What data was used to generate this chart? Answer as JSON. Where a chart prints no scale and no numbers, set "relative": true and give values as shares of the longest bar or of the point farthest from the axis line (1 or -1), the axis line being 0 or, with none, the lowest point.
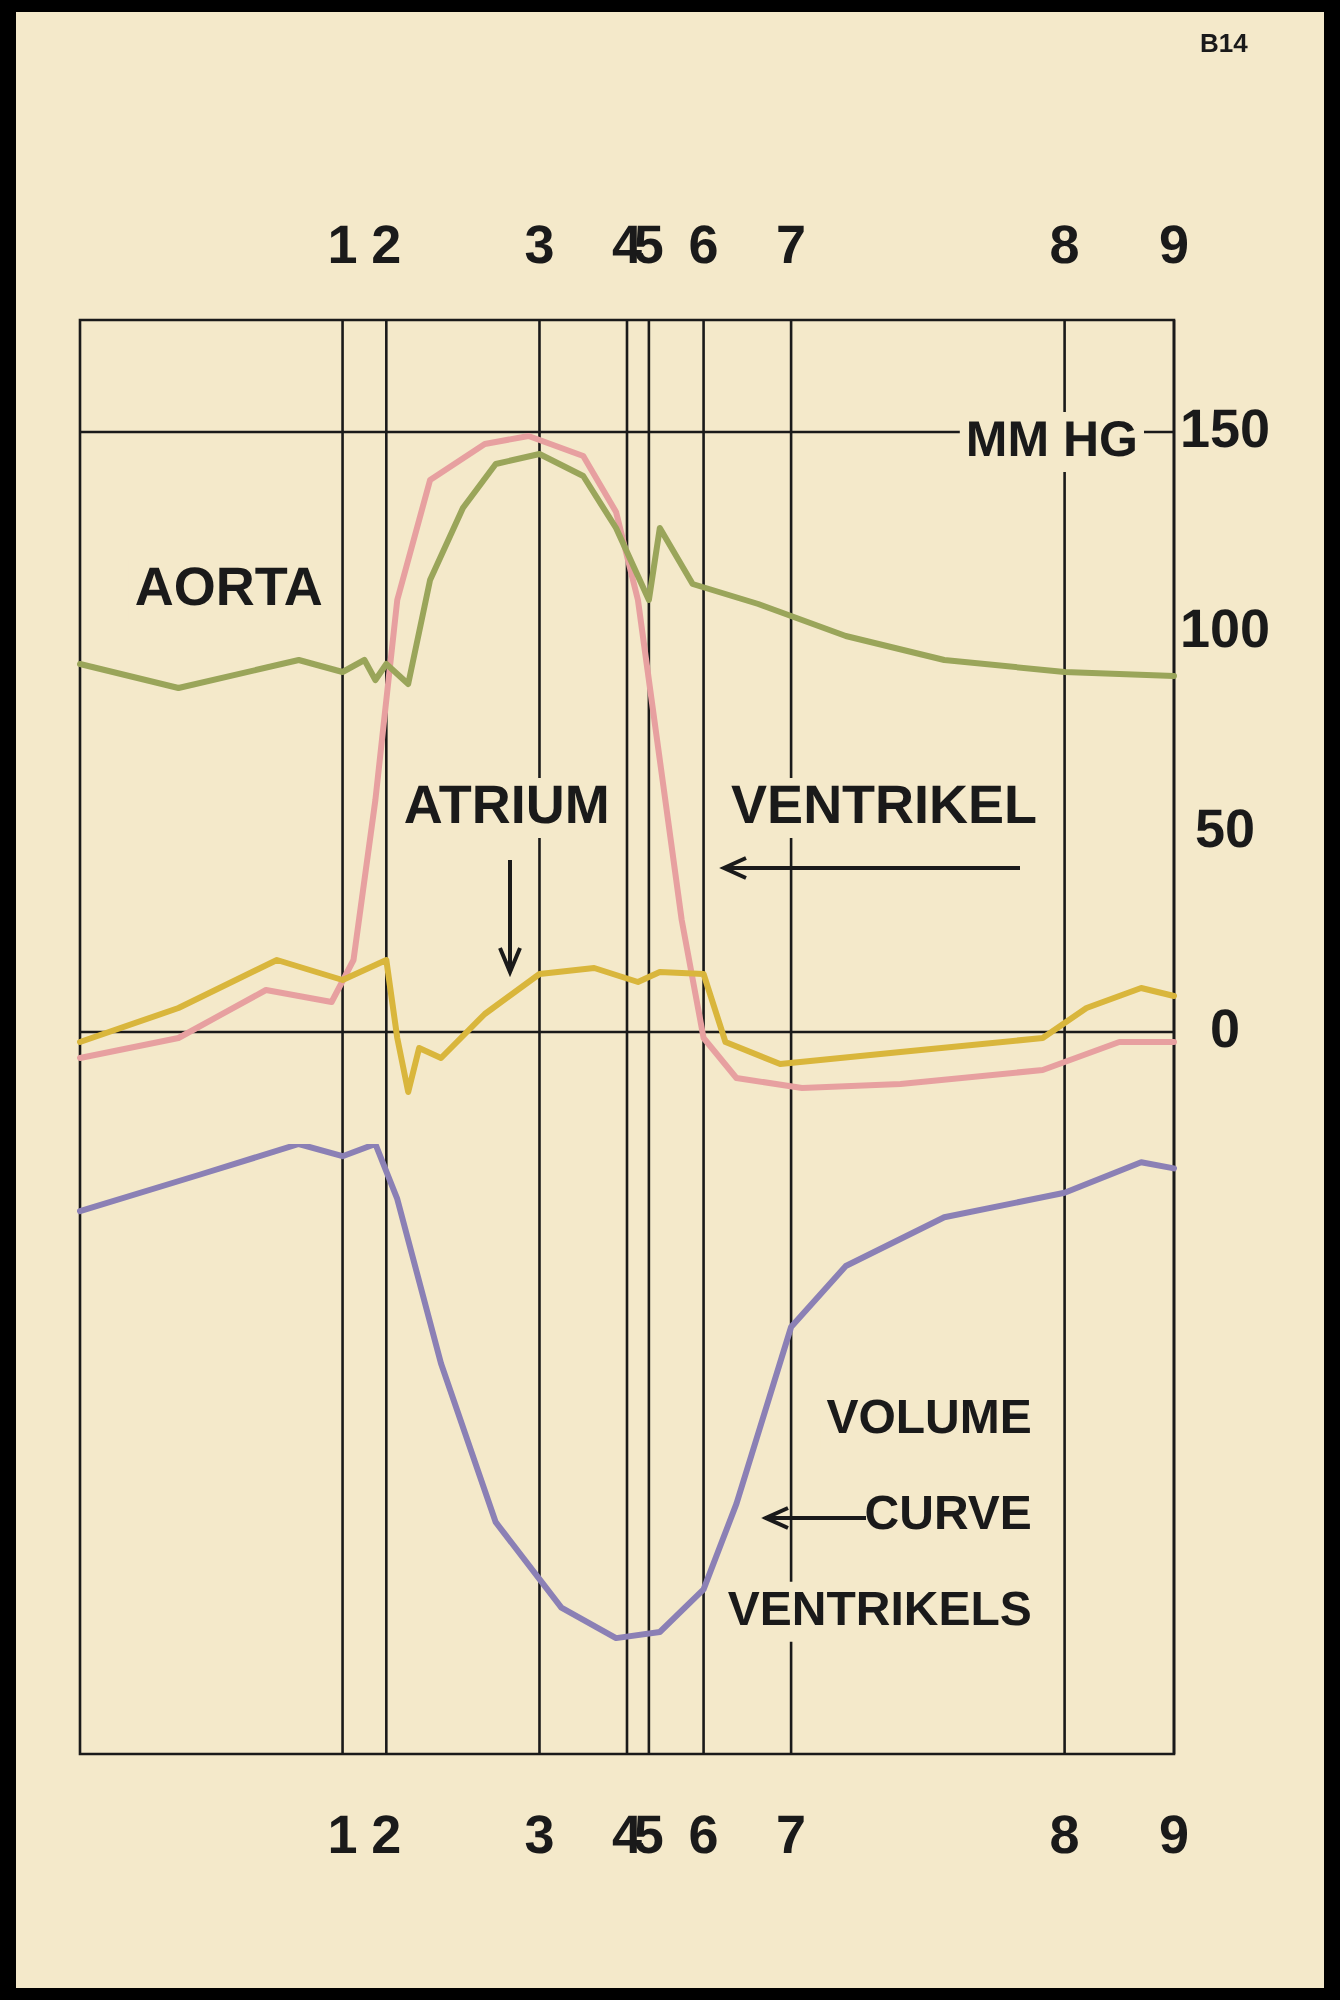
{
  "chart_data": [
    {
      "type": "line",
      "ylabel": "MM HG",
      "annotations": [
        "B14"
      ],
      "categories": [
        null,
        null,
        null,
        null,
        null,
        null,
        null,
        null,
        null,
        null,
        null,
        null,
        null,
        null,
        null,
        null,
        null,
        null,
        null,
        null,
        null,
        null,
        null,
        null,
        "1",
        null,
        null,
        null,
        "2",
        null,
        null,
        null,
        null,
        null,
        null,
        null,
        null,
        null,
        null,
        null,
        null,
        null,
        "3",
        null,
        null,
        null,
        null,
        null,
        null,
        null,
        "4",
        null,
        "5",
        null,
        null,
        null,
        null,
        "6",
        null,
        null,
        null,
        null,
        null,
        null,
        null,
        "7",
        null,
        null,
        null,
        null,
        null,
        null,
        null,
        null,
        null,
        null,
        null,
        null,
        null,
        null,
        null,
        null,
        null,
        null,
        null,
        null,
        null,
        null,
        null,
        null,
        "8",
        null,
        null,
        null,
        null,
        null,
        null,
        null,
        null,
        null,
        "9"
      ],
      "ylim": [
        -22,
        178
      ],
      "yticks": [
        0,
        50,
        100,
        150
      ],
      "grid": "x",
      "marker": "none",
      "line_style": "solid",
      "ref_lines": [
        {
          "axis": "y",
          "value": 150,
          "color": "#1a1a1a"
        },
        {
          "axis": "y",
          "value": 0,
          "color": "#1a1a1a"
        }
      ],
      "series": [
        {
          "name": "AORTA",
          "color": "#9aa55a",
          "values": [
            92,
            null,
            null,
            null,
            null,
            null,
            null,
            null,
            null,
            86,
            null,
            null,
            null,
            null,
            null,
            null,
            null,
            null,
            null,
            null,
            93,
            null,
            null,
            null,
            90,
            null,
            93,
            88,
            92,
            null,
            87,
            null,
            113,
            null,
            null,
            131,
            null,
            null,
            142,
            null,
            null,
            null,
            144.5,
            null,
            null,
            null,
            139,
            null,
            null,
            126,
            null,
            null,
            108,
            126,
            null,
            null,
            112,
            null,
            null,
            null,
            null,
            null,
            107,
            null,
            null,
            null,
            null,
            null,
            null,
            null,
            99,
            null,
            null,
            null,
            null,
            null,
            null,
            null,
            null,
            93,
            null,
            null,
            null,
            null,
            null,
            null,
            null,
            null,
            null,
            null,
            90,
            null,
            null,
            null,
            null,
            null,
            null,
            null,
            null,
            null,
            89
          ]
        },
        {
          "name": "ATRIUM",
          "color": "#d9b63c",
          "values": [
            -2.5,
            null,
            null,
            null,
            null,
            null,
            null,
            null,
            null,
            6,
            null,
            null,
            null,
            null,
            null,
            null,
            null,
            null,
            18,
            null,
            null,
            null,
            null,
            null,
            13,
            null,
            null,
            null,
            18,
            -1.5,
            -15,
            -4,
            null,
            -6.5,
            null,
            null,
            null,
            4.5,
            null,
            null,
            null,
            null,
            14.5,
            null,
            null,
            null,
            null,
            16,
            null,
            null,
            null,
            12.5,
            null,
            15,
            null,
            null,
            null,
            14.5,
            null,
            -2.5,
            null,
            null,
            null,
            null,
            -8,
            null,
            null,
            null,
            null,
            null,
            null,
            null,
            null,
            null,
            null,
            -5,
            null,
            null,
            null,
            null,
            null,
            null,
            null,
            null,
            null,
            null,
            null,
            null,
            -1.5,
            null,
            null,
            null,
            6,
            null,
            null,
            null,
            null,
            11,
            null,
            null,
            9
          ]
        },
        {
          "name": "VENTRIKEL",
          "color": "#e7a0a0",
          "values": [
            -6.5,
            null,
            null,
            null,
            null,
            null,
            null,
            null,
            null,
            -1.5,
            null,
            null,
            null,
            null,
            null,
            null,
            null,
            10.5,
            null,
            null,
            null,
            null,
            null,
            7.5,
            null,
            18,
            null,
            58,
            null,
            108,
            null,
            null,
            138,
            null,
            null,
            null,
            null,
            147,
            null,
            null,
            null,
            149,
            null,
            null,
            null,
            null,
            144,
            null,
            null,
            130,
            null,
            108,
            null,
            68,
            null,
            28,
            null,
            -1.5,
            null,
            null,
            -11.5,
            null,
            null,
            null,
            null,
            null,
            -14,
            null,
            null,
            null,
            null,
            null,
            null,
            null,
            null,
            -13,
            null,
            null,
            null,
            null,
            null,
            null,
            null,
            null,
            null,
            null,
            null,
            null,
            -9.5,
            null,
            null,
            null,
            null,
            null,
            null,
            -2.5,
            null,
            null,
            null,
            null,
            -2.5
          ]
        }
      ]
    },
    {
      "type": "line",
      "relative": true,
      "tick_labels": "x",
      "categories": [
        null,
        null,
        null,
        null,
        null,
        null,
        null,
        null,
        null,
        null,
        null,
        null,
        null,
        null,
        null,
        null,
        null,
        null,
        null,
        null,
        null,
        null,
        null,
        null,
        "1",
        null,
        null,
        null,
        "2",
        null,
        null,
        null,
        null,
        null,
        null,
        null,
        null,
        null,
        null,
        null,
        null,
        null,
        "3",
        null,
        null,
        null,
        null,
        null,
        null,
        null,
        "4",
        null,
        "5",
        null,
        null,
        null,
        null,
        "6",
        null,
        null,
        null,
        null,
        null,
        null,
        null,
        "7",
        null,
        null,
        null,
        null,
        null,
        null,
        null,
        null,
        null,
        null,
        null,
        null,
        null,
        null,
        null,
        null,
        null,
        null,
        null,
        null,
        null,
        null,
        null,
        null,
        "8",
        null,
        null,
        null,
        null,
        null,
        null,
        null,
        null,
        null,
        "9"
      ],
      "grid": "x",
      "marker": "none",
      "line_style": "solid",
      "series": [
        {
          "name": "VOLUME CURVE VENTRIKELS",
          "color": "#8b80b5",
          "values": [
            0.89,
            null,
            null,
            null,
            null,
            null,
            null,
            null,
            null,
            null,
            null,
            0.95,
            null,
            null,
            null,
            null,
            null,
            null,
            null,
            null,
            1,
            null,
            null,
            null,
            0.98,
            null,
            null,
            1,
            null,
            0.91,
            null,
            null,
            null,
            0.64,
            null,
            null,
            null,
            null,
            0.38,
            null,
            null,
            null,
            null,
            null,
            0.24,
            null,
            null,
            null,
            null,
            0.19,
            null,
            null,
            null,
            0.2,
            null,
            null,
            null,
            0.27,
            null,
            null,
            0.41,
            null,
            null,
            null,
            null,
            0.7,
            null,
            null,
            null,
            null,
            0.8,
            null,
            null,
            null,
            null,
            null,
            null,
            null,
            null,
            0.88,
            null,
            null,
            null,
            null,
            null,
            null,
            null,
            null,
            null,
            null,
            0.92,
            null,
            null,
            null,
            null,
            null,
            null,
            0.97,
            null,
            null,
            0.96
          ]
        }
      ]
    }
  ]
}
